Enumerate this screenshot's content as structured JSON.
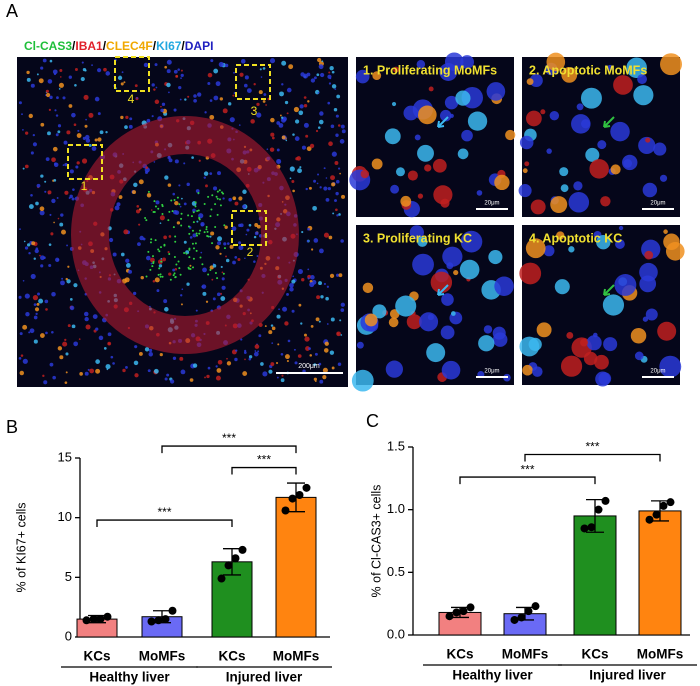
{
  "panel_labels": [
    "A",
    "B",
    "C"
  ],
  "image_panel": {
    "stains": [
      {
        "name": "Cl-CAS3",
        "color": "#1fbf3a"
      },
      {
        "name": "IBA1",
        "color": "#e0202a"
      },
      {
        "name": "CLEC4F",
        "color": "#f0a800"
      },
      {
        "name": "KI67",
        "color": "#22a8e0"
      },
      {
        "name": "DAPI",
        "color": "#2020c0"
      }
    ],
    "separator": "/",
    "regions": [
      "1",
      "2",
      "3",
      "4"
    ],
    "scale_bar": "200μm",
    "insets": [
      {
        "title": "1. Proliferating MoMFs",
        "scale_bar": "20μm"
      },
      {
        "title": "2. Apoptotic MoMFs",
        "scale_bar": "20μm"
      },
      {
        "title": "3. Proliferating KC",
        "scale_bar": "20μm"
      },
      {
        "title": "4. Apoptotic KC",
        "scale_bar": "20μm"
      }
    ]
  },
  "chart_data": [
    {
      "type": "bar",
      "ylabel": "% of KI67+ cells",
      "categories": [
        "KCs",
        "MoMFs",
        "KCs",
        "MoMFs"
      ],
      "groups": [
        "Healthy liver",
        "Injured liver"
      ],
      "colors": [
        "#f28080",
        "#6a6af5",
        "#1f8f1f",
        "#ff8410"
      ],
      "values": [
        1.5,
        1.7,
        6.3,
        11.7
      ],
      "errors": [
        0.3,
        0.5,
        1.1,
        1.2
      ],
      "points": [
        [
          1.4,
          1.5,
          1.5,
          1.7
        ],
        [
          1.3,
          1.4,
          1.5,
          2.2
        ],
        [
          4.9,
          6.0,
          6.6,
          7.3
        ],
        [
          10.6,
          11.6,
          11.9,
          12.5
        ]
      ],
      "ylim": [
        0,
        15
      ],
      "yticks": [
        0,
        5,
        10,
        15
      ],
      "comparisons": [
        {
          "pair": [
            0,
            2
          ],
          "y": 9.8,
          "label": "***"
        },
        {
          "pair": [
            2,
            3
          ],
          "y": 14.2,
          "label": "***"
        },
        {
          "pair": [
            1,
            3
          ],
          "y": 16.0,
          "label": "***"
        }
      ]
    },
    {
      "type": "bar",
      "ylabel": "% of Cl-CAS3+ cells",
      "categories": [
        "KCs",
        "MoMFs",
        "KCs",
        "MoMFs"
      ],
      "groups": [
        "Healthy liver",
        "Injured liver"
      ],
      "colors": [
        "#f28080",
        "#6a6af5",
        "#1f8f1f",
        "#ff8410"
      ],
      "values": [
        0.18,
        0.17,
        0.95,
        0.99
      ],
      "errors": [
        0.04,
        0.05,
        0.13,
        0.08
      ],
      "points": [
        [
          0.15,
          0.18,
          0.19,
          0.22
        ],
        [
          0.12,
          0.14,
          0.19,
          0.23
        ],
        [
          0.85,
          0.86,
          1.0,
          1.07
        ],
        [
          0.92,
          0.96,
          1.03,
          1.06
        ]
      ],
      "ylim": [
        0,
        1.5
      ],
      "yticks": [
        {
          "value": 0,
          "label": "0.0"
        },
        0.5,
        {
          "value": 1,
          "label": "1.0"
        },
        1.5
      ],
      "comparisons": [
        {
          "pair": [
            0,
            2
          ],
          "y": 1.26,
          "label": "***"
        },
        {
          "pair": [
            1,
            3
          ],
          "y": 1.44,
          "label": "***"
        }
      ]
    }
  ]
}
